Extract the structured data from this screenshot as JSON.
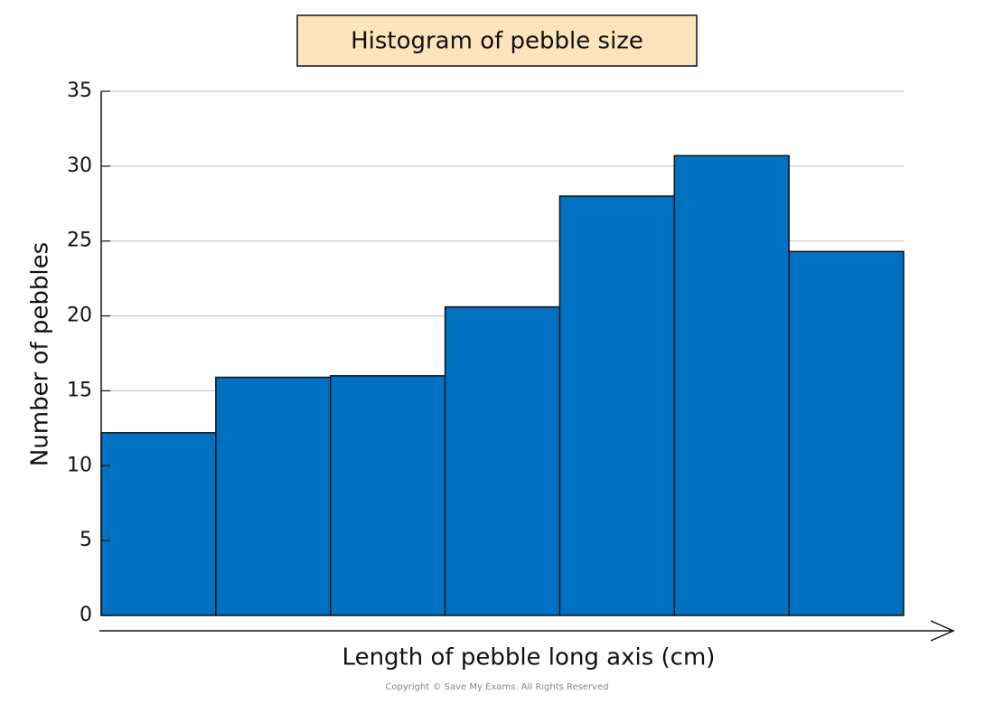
{
  "chart_data": {
    "type": "bar",
    "title": "Histogram of pebble size",
    "x_label": "Length of pebble long axis (cm)",
    "y_label": "Number of pebbles",
    "categories": [
      null,
      null,
      null,
      null,
      null,
      null,
      null
    ],
    "values": [
      12.2,
      15.9,
      16.0,
      20.6,
      28.0,
      30.7,
      24.3
    ],
    "color": "#0070c0",
    "ylim": [
      0,
      35
    ],
    "yticks": [
      0,
      5,
      10,
      15,
      20,
      25,
      30,
      35
    ],
    "grid": true,
    "copyright": "Copyright © Save My Exams. All Rights Reserved"
  }
}
